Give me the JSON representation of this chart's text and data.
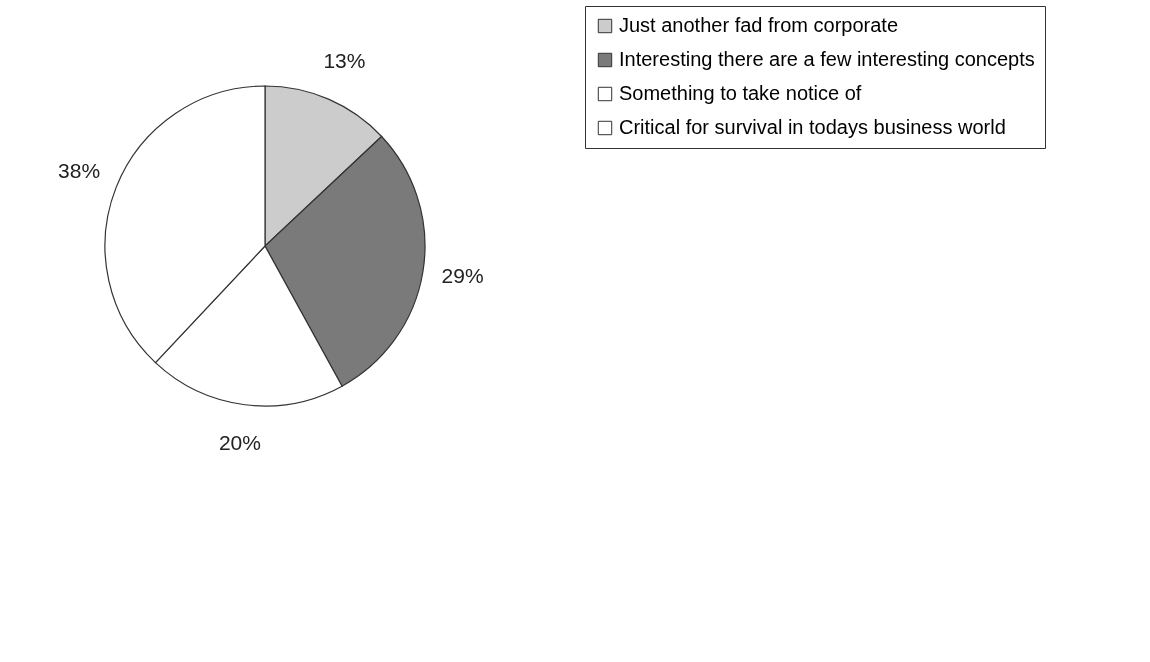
{
  "chart_data": {
    "type": "pie",
    "categories": [
      "Just another fad from corporate",
      "Interesting there are a few interesting concepts",
      "Something to take notice of",
      "Critical for survival in todays business world"
    ],
    "values": [
      13,
      29,
      20,
      38
    ],
    "colors": [
      "#cccccc",
      "#7a7a7a",
      "#ffffff",
      "#ffffff"
    ],
    "value_labels": [
      "13%",
      "29%",
      "20%",
      "38%"
    ],
    "legend": "right"
  }
}
